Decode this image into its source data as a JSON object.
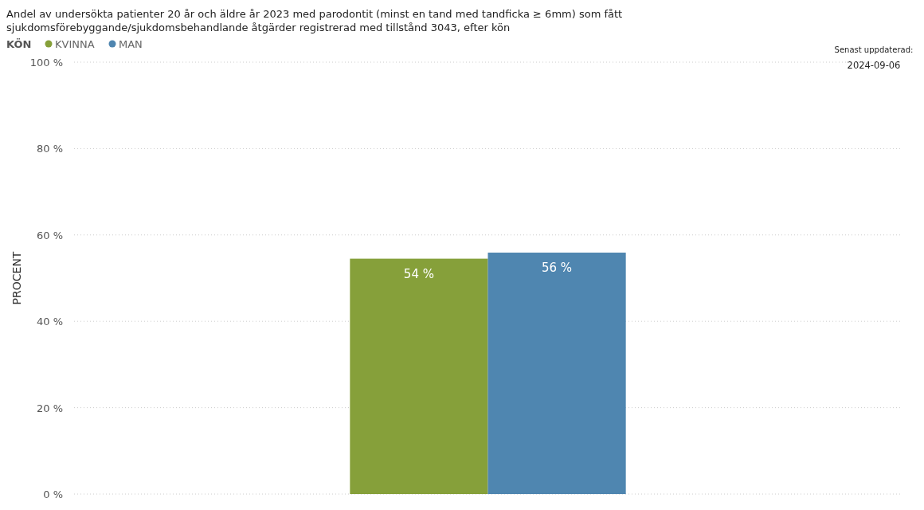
{
  "chart_data": {
    "type": "bar",
    "title": "Andel av undersökta patienter 20 år och äldre år 2023 med parodontit (minst en tand med tandficka ≥ 6mm) som fått sjukdomsförebyggande/sjukdomsbehandlande åtgärder registrerad med tillstånd 3043, efter kön",
    "ylabel": "PROCENT",
    "legend_title": "KÖN",
    "legend": "top left",
    "grid": "y",
    "categories": [
      null
    ],
    "series": [
      {
        "name": "KVINNA",
        "color": "#86a03a",
        "values": [
          54.5
        ],
        "value_labels": [
          "54 %"
        ]
      },
      {
        "name": "MAN",
        "color": "#4f86b0",
        "values": [
          55.9
        ],
        "value_labels": [
          "56 %"
        ]
      }
    ],
    "ylim": [
      0,
      100
    ],
    "yticks": [
      {
        "value": 0,
        "label": "0 %"
      },
      {
        "value": 20,
        "label": "20 %"
      },
      {
        "value": 40,
        "label": "40 %"
      },
      {
        "value": 60,
        "label": "60 %"
      },
      {
        "value": 80,
        "label": "80 %"
      },
      {
        "value": 100,
        "label": "100 %"
      }
    ],
    "annotations": [
      "Senast uppdaterad:",
      "2024-09-06"
    ]
  }
}
